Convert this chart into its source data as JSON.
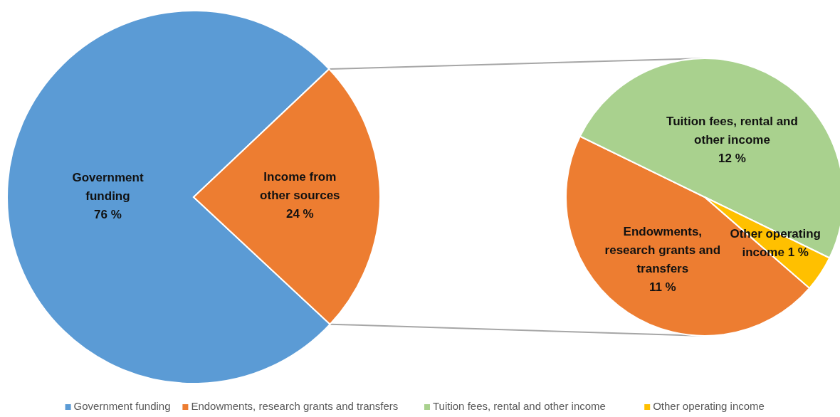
{
  "chart_data": [
    {
      "type": "pie",
      "categories": [
        "Government funding",
        "Income from other sources"
      ],
      "values": [
        76,
        24
      ],
      "value_labels": [
        "76 %",
        "24 %"
      ],
      "colors": [
        "#5b9bd5",
        "#ed7d31"
      ],
      "legend": "bottom"
    },
    {
      "type": "pie",
      "categories": [
        "Endowments, research grants and transfers",
        "Tuition fees, rental and other income",
        "Other operating income"
      ],
      "values": [
        11,
        12,
        1
      ],
      "value_labels": [
        "11 %",
        "12 %",
        "1 %"
      ],
      "colors": [
        "#ed7d31",
        "#a9d18e",
        "#ffc000"
      ],
      "legend": "bottom"
    }
  ]
}
